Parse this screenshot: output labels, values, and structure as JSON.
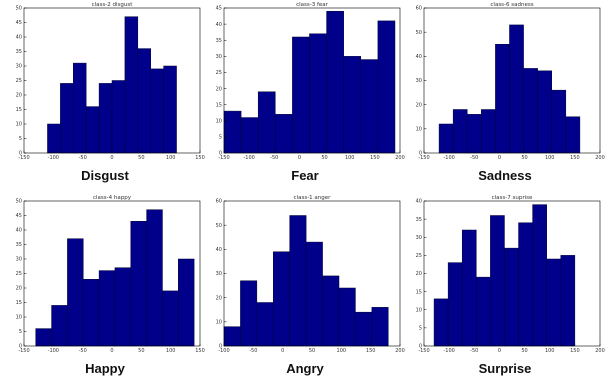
{
  "colors": {
    "bar": "#00008b",
    "bar_edge": "#000033",
    "axis": "#000000"
  },
  "chart_data": [
    {
      "type": "bar",
      "title": "class-2 disgust",
      "caption": "Disgust",
      "xlim": [
        -150,
        150
      ],
      "ylim": [
        0,
        50
      ],
      "xticks": [
        -150,
        -100,
        -50,
        0,
        50,
        100,
        150
      ],
      "yticks": [
        0,
        5,
        10,
        15,
        20,
        25,
        30,
        35,
        40,
        45,
        50
      ],
      "bin_edges": [
        -110,
        -88,
        -66,
        -44,
        -22,
        0,
        22,
        44,
        66,
        88,
        110
      ],
      "values": [
        10,
        24,
        31,
        16,
        24,
        25,
        47,
        36,
        29,
        30
      ]
    },
    {
      "type": "bar",
      "title": "class-3 fear",
      "caption": "Fear",
      "xlim": [
        -150,
        200
      ],
      "ylim": [
        0,
        45
      ],
      "xticks": [
        -150,
        -100,
        -50,
        0,
        50,
        100,
        150,
        200
      ],
      "yticks": [
        0,
        5,
        10,
        15,
        20,
        25,
        30,
        35,
        40,
        45
      ],
      "bin_edges": [
        -150,
        -116,
        -82,
        -48,
        -14,
        20,
        54,
        88,
        122,
        156,
        190
      ],
      "values": [
        13,
        11,
        19,
        12,
        36,
        37,
        44,
        30,
        29,
        41
      ]
    },
    {
      "type": "bar",
      "title": "class-6 sadness",
      "caption": "Sadness",
      "xlim": [
        -150,
        200
      ],
      "ylim": [
        0,
        60
      ],
      "xticks": [
        -150,
        -100,
        -50,
        0,
        50,
        100,
        150,
        200
      ],
      "yticks": [
        0,
        10,
        20,
        30,
        40,
        50,
        60
      ],
      "bin_edges": [
        -120,
        -92,
        -64,
        -36,
        -8,
        20,
        48,
        76,
        104,
        132,
        160
      ],
      "values": [
        12,
        18,
        16,
        18,
        45,
        53,
        35,
        34,
        26,
        15
      ]
    },
    {
      "type": "bar",
      "title": "class-4 happy",
      "caption": "Happy",
      "xlim": [
        -150,
        150
      ],
      "ylim": [
        0,
        50
      ],
      "xticks": [
        -150,
        -100,
        -50,
        0,
        50,
        100,
        150
      ],
      "yticks": [
        0,
        5,
        10,
        15,
        20,
        25,
        30,
        35,
        40,
        45,
        50
      ],
      "bin_edges": [
        -130,
        -103,
        -76,
        -49,
        -22,
        5,
        32,
        59,
        86,
        113,
        140
      ],
      "values": [
        6,
        14,
        37,
        23,
        26,
        27,
        43,
        47,
        19,
        30
      ]
    },
    {
      "type": "bar",
      "title": "class-1 anger",
      "caption": "Angry",
      "xlim": [
        -100,
        200
      ],
      "ylim": [
        0,
        60
      ],
      "xticks": [
        -100,
        -50,
        0,
        50,
        100,
        150,
        200
      ],
      "yticks": [
        0,
        10,
        20,
        30,
        40,
        50,
        60
      ],
      "bin_edges": [
        -100,
        -72,
        -44,
        -16,
        12,
        40,
        68,
        96,
        124,
        152,
        180
      ],
      "values": [
        8,
        27,
        18,
        39,
        54,
        43,
        29,
        24,
        14,
        16
      ]
    },
    {
      "type": "bar",
      "title": "class-7 suprise",
      "caption": "Surprise",
      "xlim": [
        -150,
        200
      ],
      "ylim": [
        0,
        40
      ],
      "xticks": [
        -150,
        -100,
        -50,
        0,
        50,
        100,
        150,
        200
      ],
      "yticks": [
        0,
        5,
        10,
        15,
        20,
        25,
        30,
        35,
        40
      ],
      "bin_edges": [
        -130,
        -102,
        -74,
        -46,
        -18,
        10,
        38,
        66,
        94,
        122,
        150
      ],
      "values": [
        13,
        23,
        32,
        19,
        36,
        27,
        34,
        39,
        24,
        25
      ]
    }
  ]
}
